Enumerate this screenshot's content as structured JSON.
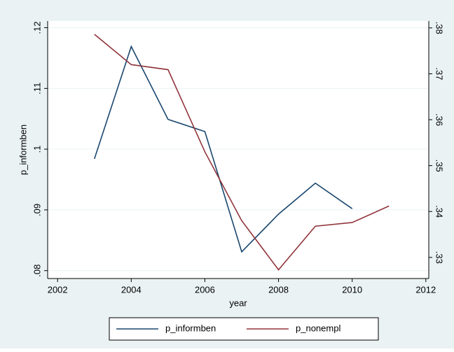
{
  "chart_data": {
    "type": "line",
    "x_label": "year",
    "y_label": "p_informben",
    "x": [
      2003,
      2004,
      2005,
      2006,
      2007,
      2008,
      2009,
      2010,
      2011
    ],
    "series": [
      {
        "name": "p_informben",
        "color": "#1a476f",
        "values": [
          0.0984,
          0.1169,
          0.1049,
          0.1029,
          0.0831,
          0.0893,
          0.0944,
          0.0902,
          null
        ]
      },
      {
        "name": "p_nonempl",
        "color": "#90353b",
        "axis": "y2",
        "values": [
          0.3786,
          0.372,
          0.3709,
          0.353,
          0.338,
          0.3273,
          0.3368,
          0.3376,
          0.3412
        ]
      }
    ],
    "xlim": [
      2001.73,
      2012.08
    ],
    "xticks": [
      2002,
      2004,
      2006,
      2008,
      2010,
      2012
    ],
    "ylim": [
      0.0787,
      0.1211
    ],
    "yticks": [
      {
        "value": 0.08,
        "label": ".08"
      },
      {
        "value": 0.09,
        "label": ".09"
      },
      {
        "value": 0.1,
        "label": ".1"
      },
      {
        "value": 0.11,
        "label": ".11"
      },
      {
        "value": 0.12,
        "label": ".12"
      }
    ],
    "y2lim": [
      0.3254,
      0.3815
    ],
    "y2ticks": [
      {
        "value": 0.33,
        "label": ".33"
      },
      {
        "value": 0.34,
        "label": ".34"
      },
      {
        "value": 0.35,
        "label": ".35"
      },
      {
        "value": 0.36,
        "label": ".36"
      },
      {
        "value": 0.37,
        "label": ".37"
      },
      {
        "value": 0.38,
        "label": ".38"
      }
    ],
    "grid": true,
    "legend": "bottom"
  }
}
